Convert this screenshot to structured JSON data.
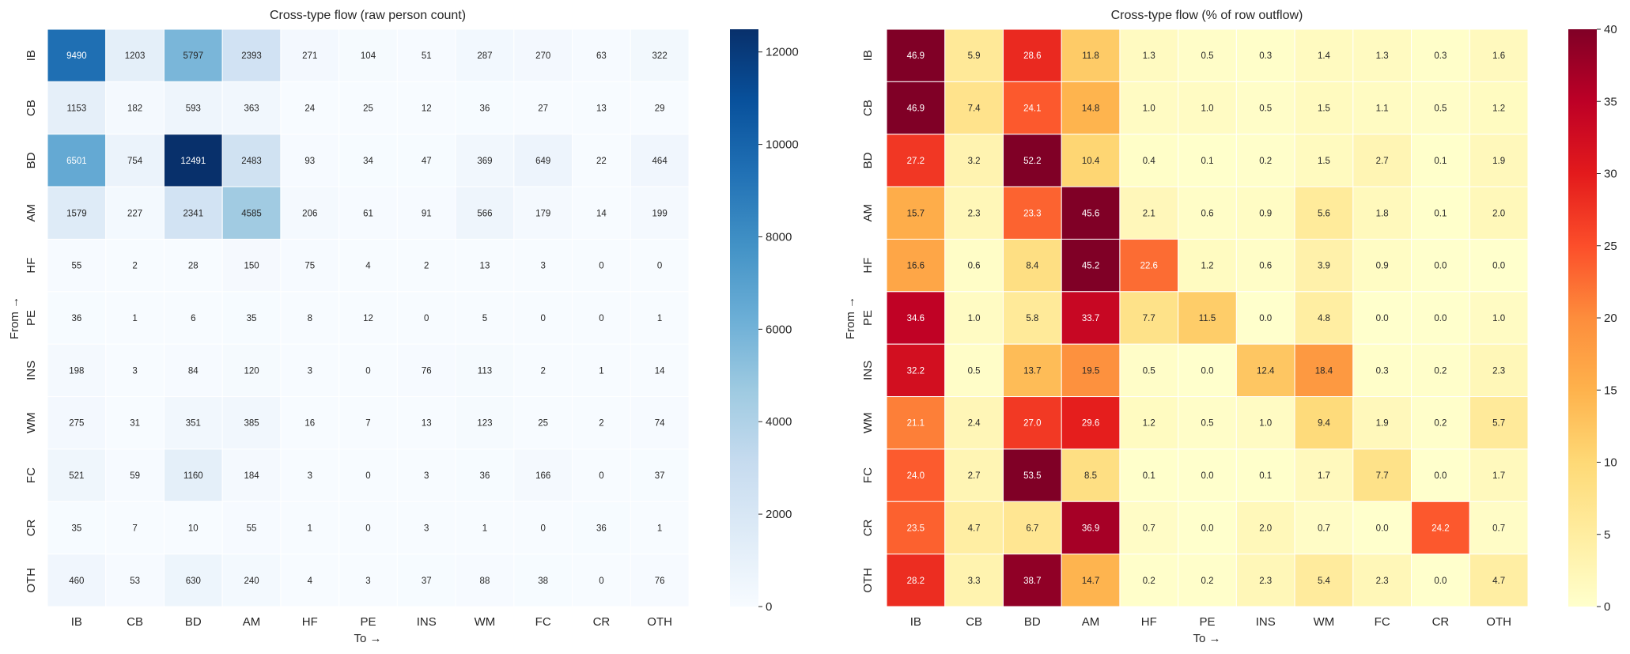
{
  "chart_data": [
    {
      "type": "heatmap",
      "title": "Cross-type flow (raw person count)",
      "xlabel": "To →",
      "ylabel": "From →",
      "x_categories": [
        "IB",
        "CB",
        "BD",
        "AM",
        "HF",
        "PE",
        "INS",
        "WM",
        "FC",
        "CR",
        "OTH"
      ],
      "y_categories": [
        "IB",
        "CB",
        "BD",
        "AM",
        "HF",
        "PE",
        "INS",
        "WM",
        "FC",
        "CR",
        "OTH"
      ],
      "values": [
        [
          9490,
          1203,
          5797,
          2393,
          271,
          104,
          51,
          287,
          270,
          63,
          322
        ],
        [
          1153,
          182,
          593,
          363,
          24,
          25,
          12,
          36,
          27,
          13,
          29
        ],
        [
          6501,
          754,
          12491,
          2483,
          93,
          34,
          47,
          369,
          649,
          22,
          464
        ],
        [
          1579,
          227,
          2341,
          4585,
          206,
          61,
          91,
          566,
          179,
          14,
          199
        ],
        [
          55,
          2,
          28,
          150,
          75,
          4,
          2,
          13,
          3,
          0,
          0
        ],
        [
          36,
          1,
          6,
          35,
          8,
          12,
          0,
          5,
          0,
          0,
          1
        ],
        [
          198,
          3,
          84,
          120,
          3,
          0,
          76,
          113,
          2,
          1,
          14
        ],
        [
          275,
          31,
          351,
          385,
          16,
          7,
          13,
          123,
          25,
          2,
          74
        ],
        [
          521,
          59,
          1160,
          184,
          3,
          0,
          3,
          36,
          166,
          0,
          37
        ],
        [
          35,
          7,
          10,
          55,
          1,
          0,
          3,
          1,
          0,
          36,
          1
        ],
        [
          460,
          53,
          630,
          240,
          4,
          3,
          37,
          88,
          38,
          0,
          76
        ]
      ],
      "value_format": "integer",
      "colormap": "Blues",
      "colormap_stops": [
        "#f7fbff",
        "#deebf7",
        "#c6dbef",
        "#9ecae1",
        "#6baed6",
        "#4292c6",
        "#2171b5",
        "#08519c",
        "#08306b"
      ],
      "color_range": [
        0,
        12491
      ],
      "colorbar_ticks": [
        0,
        2000,
        4000,
        6000,
        8000,
        10000,
        12000
      ]
    },
    {
      "type": "heatmap",
      "title": "Cross-type flow (% of row outflow)",
      "xlabel": "To →",
      "ylabel": "From →",
      "x_categories": [
        "IB",
        "CB",
        "BD",
        "AM",
        "HF",
        "PE",
        "INS",
        "WM",
        "FC",
        "CR",
        "OTH"
      ],
      "y_categories": [
        "IB",
        "CB",
        "BD",
        "AM",
        "HF",
        "PE",
        "INS",
        "WM",
        "FC",
        "CR",
        "OTH"
      ],
      "values": [
        [
          46.9,
          5.9,
          28.6,
          11.8,
          1.3,
          0.5,
          0.3,
          1.4,
          1.3,
          0.3,
          1.6
        ],
        [
          46.9,
          7.4,
          24.1,
          14.8,
          1.0,
          1.0,
          0.5,
          1.5,
          1.1,
          0.5,
          1.2
        ],
        [
          27.2,
          3.2,
          52.2,
          10.4,
          0.4,
          0.1,
          0.2,
          1.5,
          2.7,
          0.1,
          1.9
        ],
        [
          15.7,
          2.3,
          23.3,
          45.6,
          2.1,
          0.6,
          0.9,
          5.6,
          1.8,
          0.1,
          2.0
        ],
        [
          16.6,
          0.6,
          8.4,
          45.2,
          22.6,
          1.2,
          0.6,
          3.9,
          0.9,
          0.0,
          0.0
        ],
        [
          34.6,
          1.0,
          5.8,
          33.7,
          7.7,
          11.5,
          0.0,
          4.8,
          0.0,
          0.0,
          1.0
        ],
        [
          32.2,
          0.5,
          13.7,
          19.5,
          0.5,
          0.0,
          12.4,
          18.4,
          0.3,
          0.2,
          2.3
        ],
        [
          21.1,
          2.4,
          27.0,
          29.6,
          1.2,
          0.5,
          1.0,
          9.4,
          1.9,
          0.2,
          5.7
        ],
        [
          24.0,
          2.7,
          53.5,
          8.5,
          0.1,
          0.0,
          0.1,
          1.7,
          7.7,
          0.0,
          1.7
        ],
        [
          23.5,
          4.7,
          6.7,
          36.9,
          0.7,
          0.0,
          2.0,
          0.7,
          0.0,
          24.2,
          0.7
        ],
        [
          28.2,
          3.3,
          38.7,
          14.7,
          0.2,
          0.2,
          2.3,
          5.4,
          2.3,
          0.0,
          4.7
        ]
      ],
      "value_format": "one-decimal",
      "colormap": "YlOrRd",
      "colormap_stops": [
        "#ffffcc",
        "#ffeda0",
        "#fed976",
        "#feb24c",
        "#fd8d3c",
        "#fc4e2a",
        "#e31a1c",
        "#bd0026",
        "#800026"
      ],
      "color_range": [
        0,
        40
      ],
      "colorbar_ticks": [
        0,
        5,
        10,
        15,
        20,
        25,
        30,
        35,
        40
      ]
    }
  ]
}
